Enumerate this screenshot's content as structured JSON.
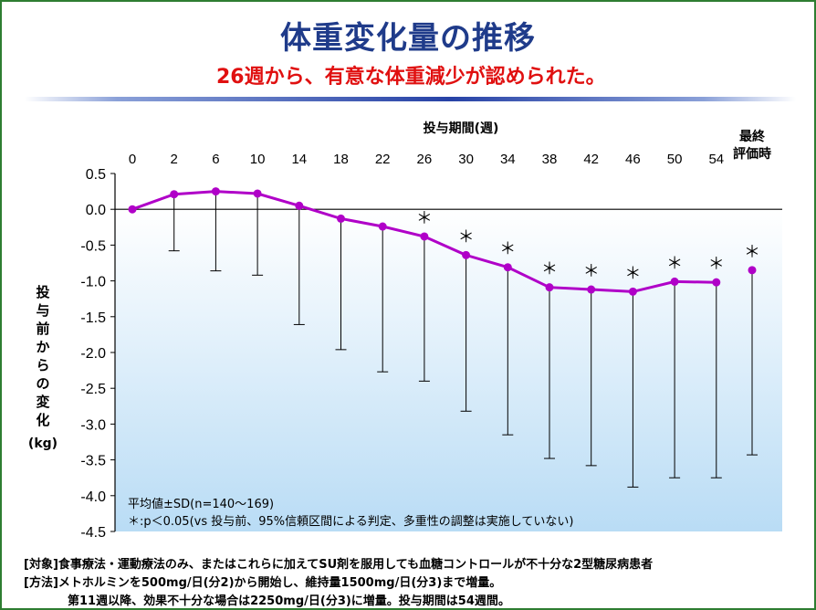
{
  "header": {
    "title": "体重変化量の推移",
    "subtitle": "26週から、有意な体重減少が認められた。"
  },
  "notes": {
    "mean_sd": "平均値±SD(n=140〜169)",
    "significance": "＊:p＜0.05(vs 投与前、95%信頼区間による判定、多重性の調整は実施していない)"
  },
  "footer": {
    "subjects": "[対象]食事療法・運動療法のみ、またはこれらに加えてSU剤を服用しても血糖コントロールが不十分な2型糖尿病患者",
    "method_line1": "[方法]メトホルミンを500mg/日(分2)から開始し、維持量1500mg/日(分3)まで増量。",
    "method_line2": "第11週以降、効果不十分な場合は2250mg/日(分3)に増量。投与期間は54週間。"
  },
  "chart_data": {
    "type": "line",
    "xlabel": "投与期間(週)",
    "ylabel_chars": [
      "投",
      "与",
      "前",
      "か",
      "ら",
      "の",
      "変",
      "化"
    ],
    "ylabel_unit": "(kg)",
    "categories": [
      "0",
      "2",
      "6",
      "10",
      "14",
      "18",
      "22",
      "26",
      "30",
      "34",
      "38",
      "42",
      "46",
      "50",
      "54"
    ],
    "final_label_lines": [
      "最終",
      "評価時"
    ],
    "ylim": [
      -4.5,
      0.5
    ],
    "yticks": [
      "0.5",
      "0.0",
      "-0.5",
      "-1.0",
      "-1.5",
      "-2.0",
      "-2.5",
      "-3.0",
      "-3.5",
      "-4.0",
      "-4.5"
    ],
    "series": [
      {
        "values": [
          0.0,
          0.21,
          0.25,
          0.22,
          0.05,
          -0.13,
          -0.24,
          -0.38,
          -0.64,
          -0.81,
          -1.09,
          -1.12,
          -1.15,
          -1.01,
          -1.02
        ],
        "sd_lower": [
          0.0,
          -0.58,
          -0.86,
          -0.92,
          -1.61,
          -1.96,
          -2.27,
          -2.4,
          -2.82,
          -3.15,
          -3.48,
          -3.58,
          -3.88,
          -3.75,
          -3.75
        ],
        "significant": [
          false,
          false,
          false,
          false,
          false,
          false,
          false,
          true,
          true,
          true,
          true,
          true,
          true,
          true,
          true
        ]
      }
    ],
    "final": {
      "value": -0.85,
      "sd_lower": -3.43,
      "significant": true
    },
    "significance_marker": "＊",
    "colors": {
      "line": "#b000c8",
      "marker": "#b000c8",
      "negative_bg_top": "#ffffff",
      "negative_bg_bottom": "#b9dcf5"
    },
    "grid": false
  }
}
